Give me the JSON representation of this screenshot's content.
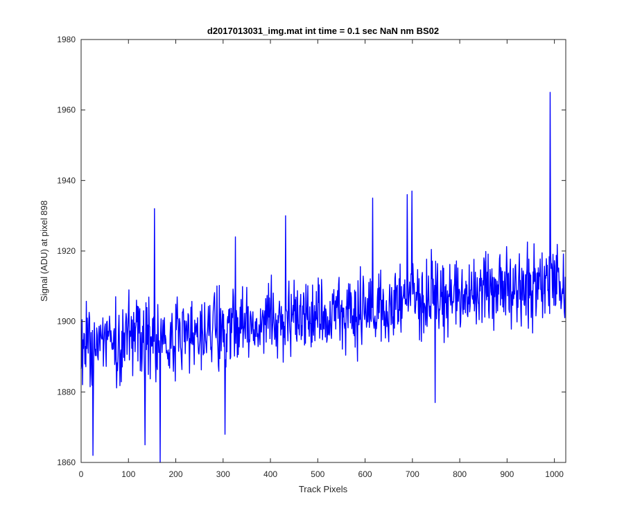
{
  "chart_data": {
    "type": "line",
    "title": "d2017013031_img.mat int time = 0.1 sec  NaN nm BS02",
    "xlabel": "Track Pixels",
    "ylabel": "Signal (ADU) at pixel 898",
    "xlim": [
      0,
      1024
    ],
    "ylim": [
      1860,
      1980
    ],
    "xticks": [
      0,
      100,
      200,
      300,
      400,
      500,
      600,
      700,
      800,
      900,
      1000
    ],
    "yticks": [
      1860,
      1880,
      1900,
      1920,
      1940,
      1960,
      1980
    ],
    "grid": false,
    "legend": "none",
    "series": [
      {
        "color": "#0000ff",
        "n_points": 1024,
        "trend_start": 1893,
        "trend_end": 1911,
        "noise_amplitude": 11,
        "spikes": [
          {
            "x": 25,
            "y": 1862
          },
          {
            "x": 135,
            "y": 1865
          },
          {
            "x": 155,
            "y": 1932
          },
          {
            "x": 167,
            "y": 1860
          },
          {
            "x": 304,
            "y": 1868
          },
          {
            "x": 326,
            "y": 1924
          },
          {
            "x": 432,
            "y": 1930
          },
          {
            "x": 616,
            "y": 1935
          },
          {
            "x": 689,
            "y": 1936
          },
          {
            "x": 699,
            "y": 1937
          },
          {
            "x": 748,
            "y": 1877
          },
          {
            "x": 991,
            "y": 1965
          }
        ]
      }
    ]
  }
}
